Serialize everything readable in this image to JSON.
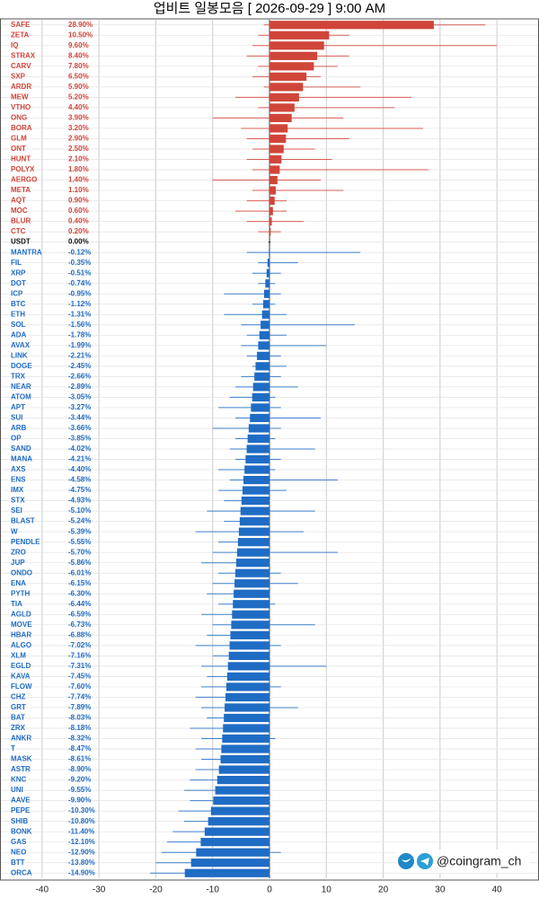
{
  "chart_data": {
    "type": "range-bar",
    "title": "업비트 일봉모음 [ 2026-09-29 ]  9:00 AM",
    "categories": [
      "SAFE",
      "ZETA",
      "IQ",
      "STRAX",
      "CARV",
      "SXP",
      "ARDR",
      "MEW",
      "VTHO",
      "ONG",
      "BORA",
      "GLM",
      "ONT",
      "HUNT",
      "POLYX",
      "AERGO",
      "META",
      "AQT",
      "MOC",
      "BLUR",
      "CTC",
      "USDT",
      "MANTRA",
      "FIL",
      "XRP",
      "DOT",
      "ICP",
      "BTC",
      "ETH",
      "SOL",
      "ADA",
      "AVAX",
      "LINK",
      "DOGE",
      "TRX",
      "NEAR",
      "ATOM",
      "APT",
      "SUI",
      "ARB",
      "OP",
      "SAND",
      "MANA",
      "AXS",
      "ENS",
      "IMX",
      "STX",
      "SEI",
      "BLAST",
      "W",
      "PENDLE",
      "ZRO",
      "JUP",
      "ONDO",
      "ENA",
      "PYTH",
      "TIA",
      "AGLD",
      "MOVE",
      "HBAR",
      "ALGO",
      "XLM",
      "EGLD",
      "KAVA",
      "FLOW",
      "CHZ",
      "GRT",
      "BAT",
      "ZRX",
      "ANKR",
      "T",
      "MASK",
      "ASTR",
      "KNC",
      "UNI",
      "AAVE",
      "PEPE",
      "SHIB",
      "BONK",
      "GAS",
      "NEO",
      "BTT",
      "ORCA"
    ],
    "values": [
      28.9,
      10.5,
      9.6,
      8.4,
      7.8,
      6.5,
      5.9,
      5.2,
      4.4,
      3.9,
      3.2,
      2.9,
      2.5,
      2.1,
      1.8,
      1.4,
      1.1,
      0.9,
      0.6,
      0.4,
      0.2,
      0,
      -0.12,
      -0.35,
      -0.51,
      -0.74,
      -0.95,
      -1.12,
      -1.31,
      -1.56,
      -1.78,
      -1.99,
      -2.21,
      -2.45,
      -2.66,
      -2.89,
      -3.05,
      -3.27,
      -3.44,
      -3.66,
      -3.85,
      -4.02,
      -4.21,
      -4.4,
      -4.58,
      -4.75,
      -4.93,
      -5.1,
      -5.24,
      -5.39,
      -5.55,
      -5.7,
      -5.86,
      -6.01,
      -6.15,
      -6.3,
      -6.44,
      -6.59,
      -6.73,
      -6.88,
      -7.02,
      -7.16,
      -7.31,
      -7.45,
      -7.6,
      -7.74,
      -7.89,
      -8.03,
      -8.18,
      -8.32,
      -8.47,
      -8.61,
      -8.9,
      -9.2,
      -9.55,
      -9.9,
      -10.3,
      -10.8,
      -11.4,
      -12.1,
      -12.9,
      -13.8,
      -14.9
    ],
    "value_labels": [
      "28.90%",
      "10.50%",
      "9.60%",
      "8.40%",
      "7.80%",
      "6.50%",
      "5.90%",
      "5.20%",
      "4.40%",
      "3.90%",
      "3.20%",
      "2.90%",
      "2.50%",
      "2.10%",
      "1.80%",
      "1.40%",
      "1.10%",
      "0.90%",
      "0.60%",
      "0.40%",
      "0.20%",
      "0.00%",
      "-0.12%",
      "-0.35%",
      "-0.51%",
      "-0.74%",
      "-0.95%",
      "-1.12%",
      "-1.31%",
      "-1.56%",
      "-1.78%",
      "-1.99%",
      "-2.21%",
      "-2.45%",
      "-2.66%",
      "-2.89%",
      "-3.05%",
      "-3.27%",
      "-3.44%",
      "-3.66%",
      "-3.85%",
      "-4.02%",
      "-4.21%",
      "-4.40%",
      "-4.58%",
      "-4.75%",
      "-4.93%",
      "-5.10%",
      "-5.24%",
      "-5.39%",
      "-5.55%",
      "-5.70%",
      "-5.86%",
      "-6.01%",
      "-6.15%",
      "-6.30%",
      "-6.44%",
      "-6.59%",
      "-6.73%",
      "-6.88%",
      "-7.02%",
      "-7.16%",
      "-7.31%",
      "-7.45%",
      "-7.60%",
      "-7.74%",
      "-7.89%",
      "-8.03%",
      "-8.18%",
      "-8.32%",
      "-8.47%",
      "-8.61%",
      "-8.90%",
      "-9.20%",
      "-9.55%",
      "-9.90%",
      "-10.30%",
      "-10.80%",
      "-11.40%",
      "-12.10%",
      "-12.90%",
      "-13.80%",
      "-14.90%"
    ],
    "low": [
      -1,
      -2,
      -3,
      -4,
      -2,
      -3,
      -1,
      -6,
      -2,
      -10,
      -5,
      -4,
      -3,
      -4,
      -3,
      -10,
      -3,
      -4,
      -6,
      -4,
      -2,
      -0.2,
      -4,
      -2,
      -3,
      -2,
      -8,
      -3,
      -8,
      -5,
      -4,
      -5,
      -4,
      -3,
      -5,
      -6,
      -7,
      -9,
      -6,
      -10,
      -6,
      -7,
      -6,
      -9,
      -7,
      -9,
      -8,
      -11,
      -8,
      -13,
      -9,
      -10,
      -12,
      -9,
      -10,
      -11,
      -9,
      -12,
      -10,
      -11,
      -13,
      -10,
      -12,
      -11,
      -12,
      -13,
      -12,
      -11,
      -14,
      -12,
      -13,
      -12,
      -13,
      -14,
      -15,
      -14,
      -16,
      -15,
      -17,
      -18,
      -19,
      -20,
      -21
    ],
    "high": [
      38,
      14,
      40,
      14,
      12,
      9,
      16,
      25,
      22,
      13,
      27,
      14,
      8,
      11,
      28,
      9,
      13,
      3,
      3,
      6,
      2,
      0.2,
      16,
      5,
      2,
      1,
      2,
      1,
      3,
      15,
      3,
      10,
      2,
      3,
      2,
      5,
      1,
      2,
      9,
      2,
      1,
      8,
      2,
      1,
      12,
      3,
      0,
      8,
      -1,
      6,
      -2,
      12,
      -1,
      2,
      5,
      -2,
      1,
      -3,
      8,
      0,
      2,
      -3,
      10,
      -1,
      2,
      -2,
      5,
      -3,
      -2,
      1,
      -4,
      0,
      -4,
      -3,
      -5,
      -6,
      -4,
      -7,
      -6,
      -8,
      2,
      -9,
      -10
    ],
    "xlim": [
      -47.4,
      47.4
    ],
    "xticks": [
      -40,
      -30,
      -20,
      -10,
      0,
      10,
      20,
      30,
      40
    ],
    "grid": true,
    "up_color": "#d0453a",
    "down_color": "#1f6cc4",
    "flat_color": "#111111"
  },
  "watermark": "@coingram_ch"
}
